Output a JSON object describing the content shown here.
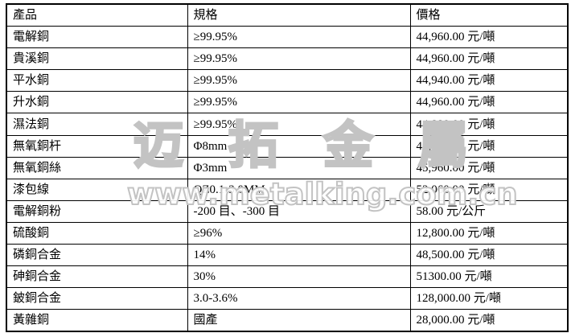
{
  "page": {
    "background_color": "#ffffff",
    "text_color": "#000000",
    "watermark_color": "#c3c3c3"
  },
  "watermark": {
    "brand_cjk": "迈拓金屬",
    "site_url": "www.metalking.com.cn"
  },
  "table": {
    "headers": [
      "產品",
      "規格",
      "價格"
    ],
    "rows": [
      {
        "product": "電解銅",
        "spec": "≥99.95%",
        "price": "44,960.00 元/噸"
      },
      {
        "product": "貴溪銅",
        "spec": "≥99.95%",
        "price": "44,960.00 元/噸"
      },
      {
        "product": "平水銅",
        "spec": "≥99.95%",
        "price": "44,940.00 元/噸"
      },
      {
        "product": "升水銅",
        "spec": "≥99.95%",
        "price": "44,960.00 元/噸"
      },
      {
        "product": "濕法銅",
        "spec": "≥99.95%",
        "price": "44,880.00 元/噸"
      },
      {
        "product": "無氧銅杆",
        "spec": "Φ8mm",
        "price": "45,760.00 元/噸"
      },
      {
        "product": "無氧銅絲",
        "spec": "Φ3mm",
        "price": "45,960.00 元/噸"
      },
      {
        "product": "漆包線",
        "spec": "QZ0.1-3.0MM",
        "price": "52,060.00 元/噸"
      },
      {
        "product": "電解銅粉",
        "spec": "-200 目、-300 目",
        "price": "58.00 元/公斤"
      },
      {
        "product": "硫酸銅",
        "spec": "≥96%",
        "price": "12,800.00 元/噸"
      },
      {
        "product": "磷銅合金",
        "spec": "14%",
        "price": "48,500.00 元/噸"
      },
      {
        "product": "砷銅合金",
        "spec": "30%",
        "price": "51300.00 元/噸"
      },
      {
        "product": "鈹銅合金",
        "spec": "3.0-3.6%",
        "price": "128,000.00 元/噸"
      },
      {
        "product": "黃雜銅",
        "spec": "國產",
        "price": "28,000.00 元/噸"
      }
    ]
  }
}
